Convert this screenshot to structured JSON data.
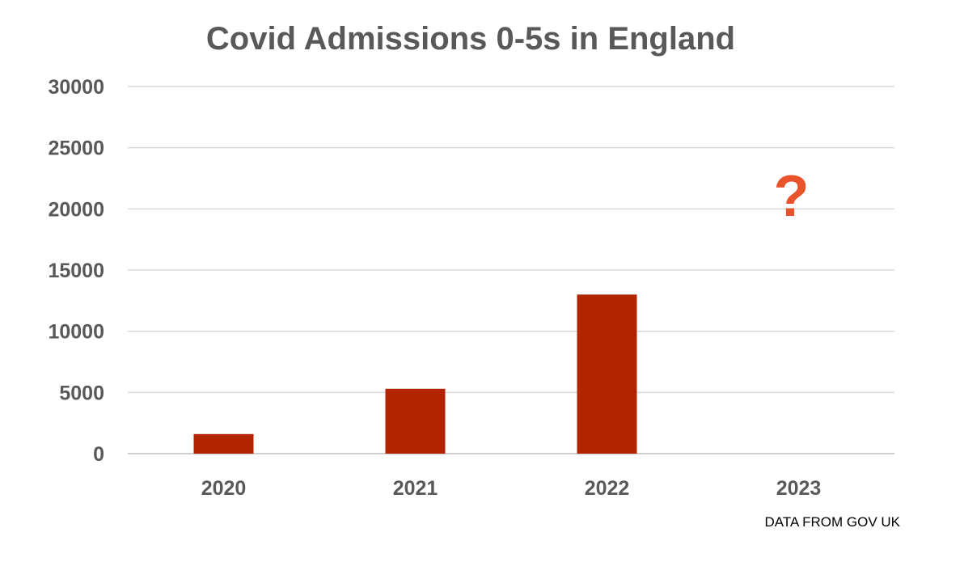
{
  "chart_data": {
    "type": "bar",
    "title": "Covid Admissions 0-5s in England",
    "categories": [
      "2020",
      "2021",
      "2022",
      "2023"
    ],
    "values": [
      1600,
      5300,
      13000,
      null
    ],
    "ylim": [
      0,
      30000
    ],
    "yticks": [
      "0",
      "5000",
      "10000",
      "15000",
      "20000",
      "25000",
      "30000"
    ],
    "grid": true,
    "annotation": {
      "text": "?",
      "category": "2023"
    },
    "source": "DATA FROM GOV UK",
    "colors": {
      "bar": "#B22400",
      "annotation": "#E8532B",
      "grid": "#D9D9D9",
      "text": "#595959"
    }
  }
}
